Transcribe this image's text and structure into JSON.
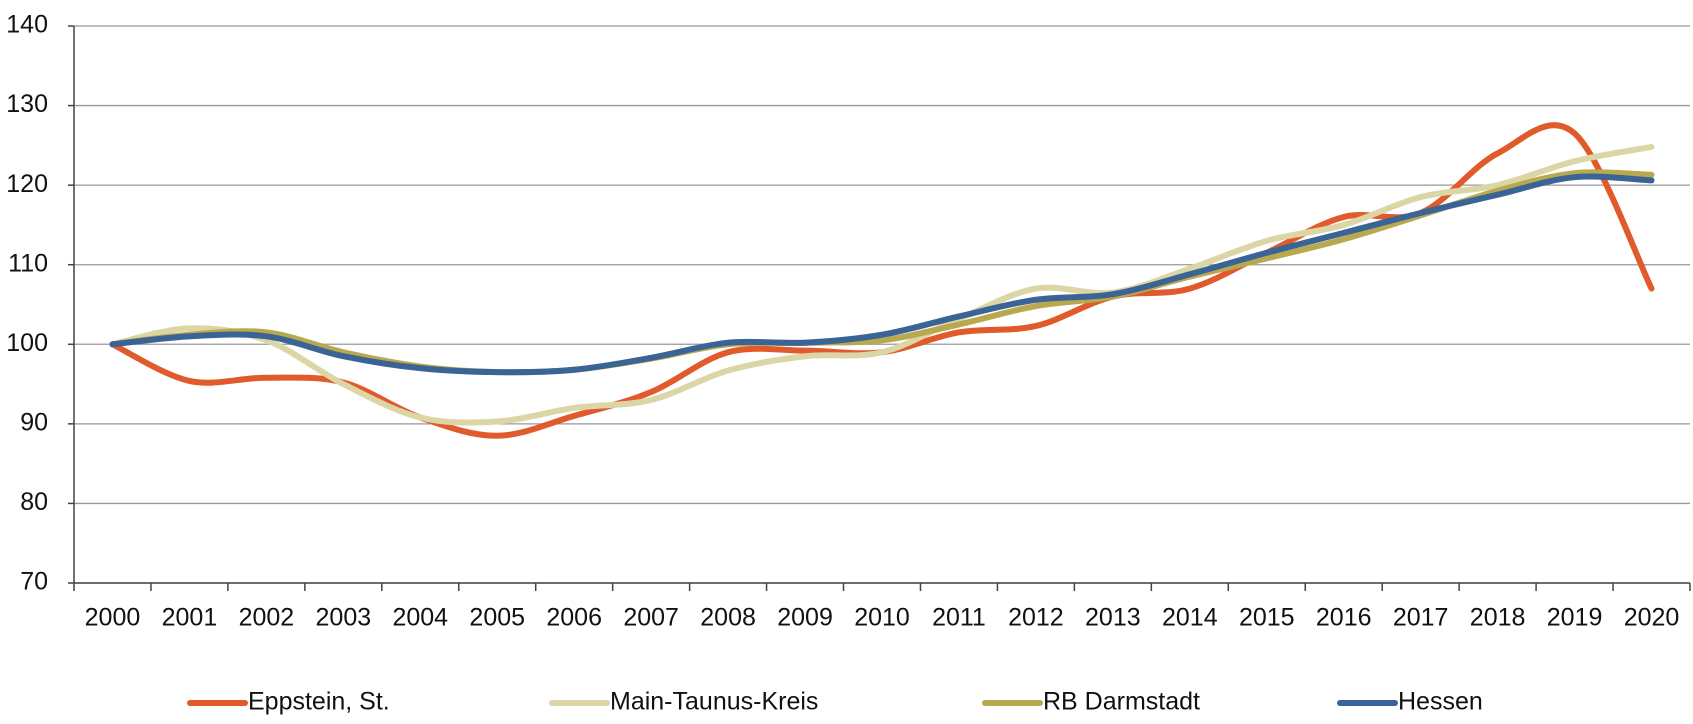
{
  "chart_data": {
    "type": "line",
    "categories": [
      "2000",
      "2001",
      "2002",
      "2003",
      "2004",
      "2005",
      "2006",
      "2007",
      "2008",
      "2009",
      "2010",
      "2011",
      "2012",
      "2013",
      "2014",
      "2015",
      "2016",
      "2017",
      "2018",
      "2019",
      "2020"
    ],
    "series": [
      {
        "name": "Eppstein, St.",
        "color": "#e05a2b",
        "values": [
          100,
          95.4,
          95.8,
          95.2,
          90.8,
          88.5,
          91,
          94,
          99,
          99.2,
          99,
          101.5,
          102.3,
          106,
          107,
          111.5,
          116,
          116.5,
          124,
          126.5,
          107
        ]
      },
      {
        "name": "Main-Taunus-Kreis",
        "color": "#dcd6a6",
        "values": [
          100,
          102,
          100.5,
          95,
          90.8,
          90.3,
          92,
          93,
          96.7,
          98.5,
          99,
          103.2,
          107,
          106.5,
          109.5,
          113,
          115,
          118.5,
          120,
          123,
          124.8
        ]
      },
      {
        "name": "RB Darmstadt",
        "color": "#b8a84e",
        "values": [
          100,
          101.2,
          101.5,
          99,
          97.2,
          96.5,
          96.8,
          98.2,
          100,
          100.2,
          100.5,
          102.5,
          104.8,
          106,
          108.5,
          110.8,
          113.2,
          116.2,
          119.3,
          121.5,
          121.3
        ]
      },
      {
        "name": "Hessen",
        "color": "#3a6496",
        "values": [
          100,
          101,
          101,
          98.5,
          97,
          96.5,
          96.8,
          98.3,
          100.2,
          100.2,
          101.2,
          103.5,
          105.6,
          106.3,
          108.8,
          111.5,
          114,
          116.5,
          118.8,
          121,
          120.6
        ]
      }
    ],
    "ylim": [
      70,
      140
    ],
    "yticks": [
      70,
      80,
      90,
      100,
      110,
      120,
      130,
      140
    ],
    "grid": true,
    "legend": "bottom"
  }
}
